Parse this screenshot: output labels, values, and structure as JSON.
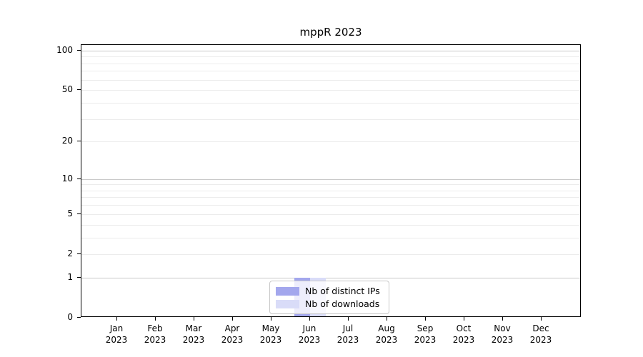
{
  "chart_data": {
    "type": "bar",
    "title": "mppR 2023",
    "categories": [
      "Jan 2023",
      "Feb 2023",
      "Mar 2023",
      "Apr 2023",
      "May 2023",
      "Jun 2023",
      "Jul 2023",
      "Aug 2023",
      "Sep 2023",
      "Oct 2023",
      "Nov 2023",
      "Dec 2023"
    ],
    "x_tick_months": [
      "Jan",
      "Feb",
      "Mar",
      "Apr",
      "May",
      "Jun",
      "Jul",
      "Aug",
      "Sep",
      "Oct",
      "Nov",
      "Dec"
    ],
    "x_tick_year": "2023",
    "series": [
      {
        "name": "Nb of distinct IPs",
        "color": "#a3a7ed",
        "values": [
          0,
          0,
          0,
          0,
          0,
          1,
          0,
          0,
          0,
          0,
          0,
          0
        ]
      },
      {
        "name": "Nb of downloads",
        "color": "#d9dcf8",
        "values": [
          0,
          0,
          0,
          0,
          0,
          1,
          0,
          0,
          0,
          0,
          0,
          0
        ]
      }
    ],
    "y_scale": "log10(1+x)",
    "ylim": [
      0,
      110
    ],
    "yticks": [
      0,
      1,
      2,
      5,
      10,
      20,
      50,
      100
    ],
    "grid": {
      "orientation": "horizontal",
      "major_values": [
        1,
        10,
        100
      ],
      "minor_values": [
        2,
        3,
        4,
        5,
        6,
        7,
        8,
        9,
        20,
        30,
        40,
        50,
        60,
        70,
        80,
        90
      ],
      "major_color": "#c9c9c9",
      "minor_color": "#ececec"
    },
    "legend_position": "lower center (inside plot)",
    "axis_color": "#000000",
    "text_color": "#000000"
  }
}
